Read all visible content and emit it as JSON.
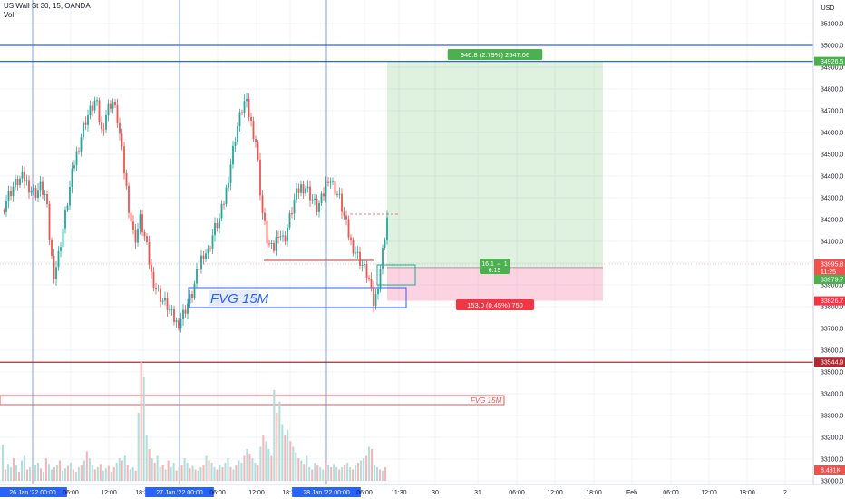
{
  "chart_data": {
    "type": "candlestick",
    "title": "US Wall St 30, 15, OANDA",
    "volume_label": "Vol",
    "currency": "USD",
    "y_ticks": [
      33000,
      33100,
      33200,
      33300,
      33400,
      33500,
      33600,
      33700,
      33800,
      33900,
      34000,
      34100,
      34200,
      34300,
      34400,
      34500,
      34600,
      34700,
      34800,
      34900,
      35000,
      35100
    ],
    "y_tick_labels": [
      "33000.0",
      "33100.0",
      "33200.0",
      "33300.0",
      "33400.0",
      "33500.0",
      "33600.0",
      "33700.0",
      "33800.0",
      "33900.0",
      "34000.0",
      "34100.0",
      "34200.0",
      "34300.0",
      "34400.0",
      "34500.0",
      "34600.0",
      "34700.0",
      "34800.0",
      "34900.0",
      "35000.0",
      "35100.0"
    ],
    "x_ticks": [
      {
        "label": "26 Jan '22  00:00",
        "highlight": true
      },
      {
        "label": "06:00"
      },
      {
        "label": "12:00"
      },
      {
        "label": "18:30"
      },
      {
        "label": "27 Jan '22  00:00",
        "highlight": true
      },
      {
        "label": "06:00"
      },
      {
        "label": "12:00"
      },
      {
        "label": "18:30"
      },
      {
        "label": "28 Jan '22  00:00",
        "highlight": true
      },
      {
        "label": "06:00"
      },
      {
        "label": "11:30"
      },
      {
        "label": "30"
      },
      {
        "label": "31"
      },
      {
        "label": "06:00"
      },
      {
        "label": "12:00"
      },
      {
        "label": "18:00"
      },
      {
        "label": "Feb"
      },
      {
        "label": "06:00"
      },
      {
        "label": "12:00"
      },
      {
        "label": "18:00"
      },
      {
        "label": "2"
      }
    ],
    "price_path": [
      [
        0,
        34240
      ],
      [
        3,
        34300
      ],
      [
        6,
        34350
      ],
      [
        9,
        34380
      ],
      [
        12,
        34390
      ],
      [
        15,
        34350
      ],
      [
        18,
        34320
      ],
      [
        21,
        34350
      ],
      [
        24,
        34300
      ],
      [
        26,
        34100
      ],
      [
        28,
        33950
      ],
      [
        30,
        34000
      ],
      [
        33,
        34150
      ],
      [
        36,
        34300
      ],
      [
        39,
        34450
      ],
      [
        42,
        34550
      ],
      [
        45,
        34650
      ],
      [
        48,
        34700
      ],
      [
        51,
        34750
      ],
      [
        54,
        34600
      ],
      [
        57,
        34700
      ],
      [
        60,
        34750
      ],
      [
        63,
        34650
      ],
      [
        66,
        34450
      ],
      [
        69,
        34250
      ],
      [
        72,
        34100
      ],
      [
        75,
        34200
      ],
      [
        78,
        34100
      ],
      [
        81,
        33950
      ],
      [
        84,
        33880
      ],
      [
        87,
        33830
      ],
      [
        90,
        33800
      ],
      [
        92,
        33760
      ],
      [
        95,
        33720
      ],
      [
        98,
        33760
      ],
      [
        100,
        33800
      ],
      [
        103,
        33850
      ],
      [
        106,
        33950
      ],
      [
        109,
        34050
      ],
      [
        112,
        34050
      ],
      [
        115,
        34150
      ],
      [
        118,
        34200
      ],
      [
        121,
        34300
      ],
      [
        124,
        34450
      ],
      [
        127,
        34600
      ],
      [
        130,
        34700
      ],
      [
        132,
        34750
      ],
      [
        135,
        34650
      ],
      [
        138,
        34550
      ],
      [
        141,
        34250
      ],
      [
        144,
        34100
      ],
      [
        147,
        34050
      ],
      [
        150,
        34150
      ],
      [
        153,
        34100
      ],
      [
        156,
        34200
      ],
      [
        159,
        34300
      ],
      [
        162,
        34350
      ],
      [
        165,
        34350
      ],
      [
        168,
        34300
      ],
      [
        171,
        34250
      ],
      [
        174,
        34300
      ],
      [
        177,
        34400
      ],
      [
        180,
        34350
      ],
      [
        183,
        34300
      ],
      [
        186,
        34200
      ],
      [
        189,
        34100
      ],
      [
        192,
        34050
      ],
      [
        195,
        34000
      ],
      [
        198,
        33950
      ],
      [
        200,
        33900
      ],
      [
        201,
        33800
      ],
      [
        203,
        33850
      ],
      [
        205,
        33960
      ],
      [
        207,
        34080
      ],
      [
        209,
        34210
      ]
    ],
    "volume_heights": [
      32,
      10,
      15,
      12,
      20,
      14,
      8,
      18,
      22,
      10,
      12,
      9,
      14,
      16,
      11,
      8,
      20,
      15,
      10,
      12,
      14,
      18,
      9,
      11,
      13,
      16,
      10,
      8,
      12,
      14,
      18,
      26,
      20,
      14,
      10,
      12,
      15,
      9,
      11,
      13,
      8,
      12,
      16,
      20,
      18,
      22,
      14,
      10,
      12,
      9,
      60,
      105,
      92,
      40,
      28,
      20,
      16,
      22,
      12,
      14,
      10,
      18,
      12,
      16,
      9,
      12,
      14,
      20,
      16,
      11,
      13,
      10,
      9,
      12,
      14,
      22,
      18,
      16,
      12,
      10,
      14,
      12,
      16,
      20,
      12,
      10,
      14,
      18,
      16,
      22,
      28,
      24,
      20,
      16,
      14,
      30,
      40,
      35,
      28,
      22,
      80,
      60,
      70,
      50,
      40,
      45,
      35,
      30,
      25,
      20,
      18,
      15,
      22,
      12,
      10,
      16,
      14,
      12,
      10,
      18,
      14,
      12,
      15,
      12,
      10,
      12,
      14,
      16,
      12,
      10,
      14,
      16,
      18,
      20,
      22,
      30,
      28,
      14,
      12,
      10,
      9,
      12
    ],
    "horizontal_levels": [
      {
        "price": 35000,
        "color": "#2962ff"
      },
      {
        "price": 34926.5,
        "color": "#2962ff"
      },
      {
        "price": 33544.9,
        "color": "#b22833"
      }
    ],
    "price_labels": [
      {
        "text": "34926.5",
        "price": 34926.5,
        "bg": "#4caf50"
      },
      {
        "text": "33995.8",
        "price": 33995.8,
        "bg": "#ef5350"
      },
      {
        "text": "11:25",
        "price": 33960,
        "bg": "#ef5350"
      },
      {
        "text": "33979.7",
        "price": 33925,
        "bg": "#4caf50"
      },
      {
        "text": "33826.7",
        "price": 33826.7,
        "bg": "#f23645"
      },
      {
        "text": "33544.9",
        "price": 33544.9,
        "bg": "#b22833"
      },
      {
        "text": "8.481K",
        "price": 33050,
        "bg": "#ef5350"
      }
    ],
    "position": {
      "entry": 33979.7,
      "target": 34926.5,
      "stop": 33826.7,
      "target_label": "946.8 (2.79%) 2547.06",
      "stop_label": "153.0 (0.45%) 750",
      "ratio_label_1": "16.1 ⇔ 1",
      "ratio_label_2": "6.19"
    },
    "annotations": {
      "fvg_main": "FVG 15M",
      "fvg_volume": "FVG 15M"
    },
    "colors": {
      "up": "#26a69a",
      "down": "#ef5350",
      "vol_up": "#b2dfdb",
      "vol_down": "#f7b5b8",
      "grid": "#f0f3fa",
      "session": "#5b8def"
    }
  }
}
